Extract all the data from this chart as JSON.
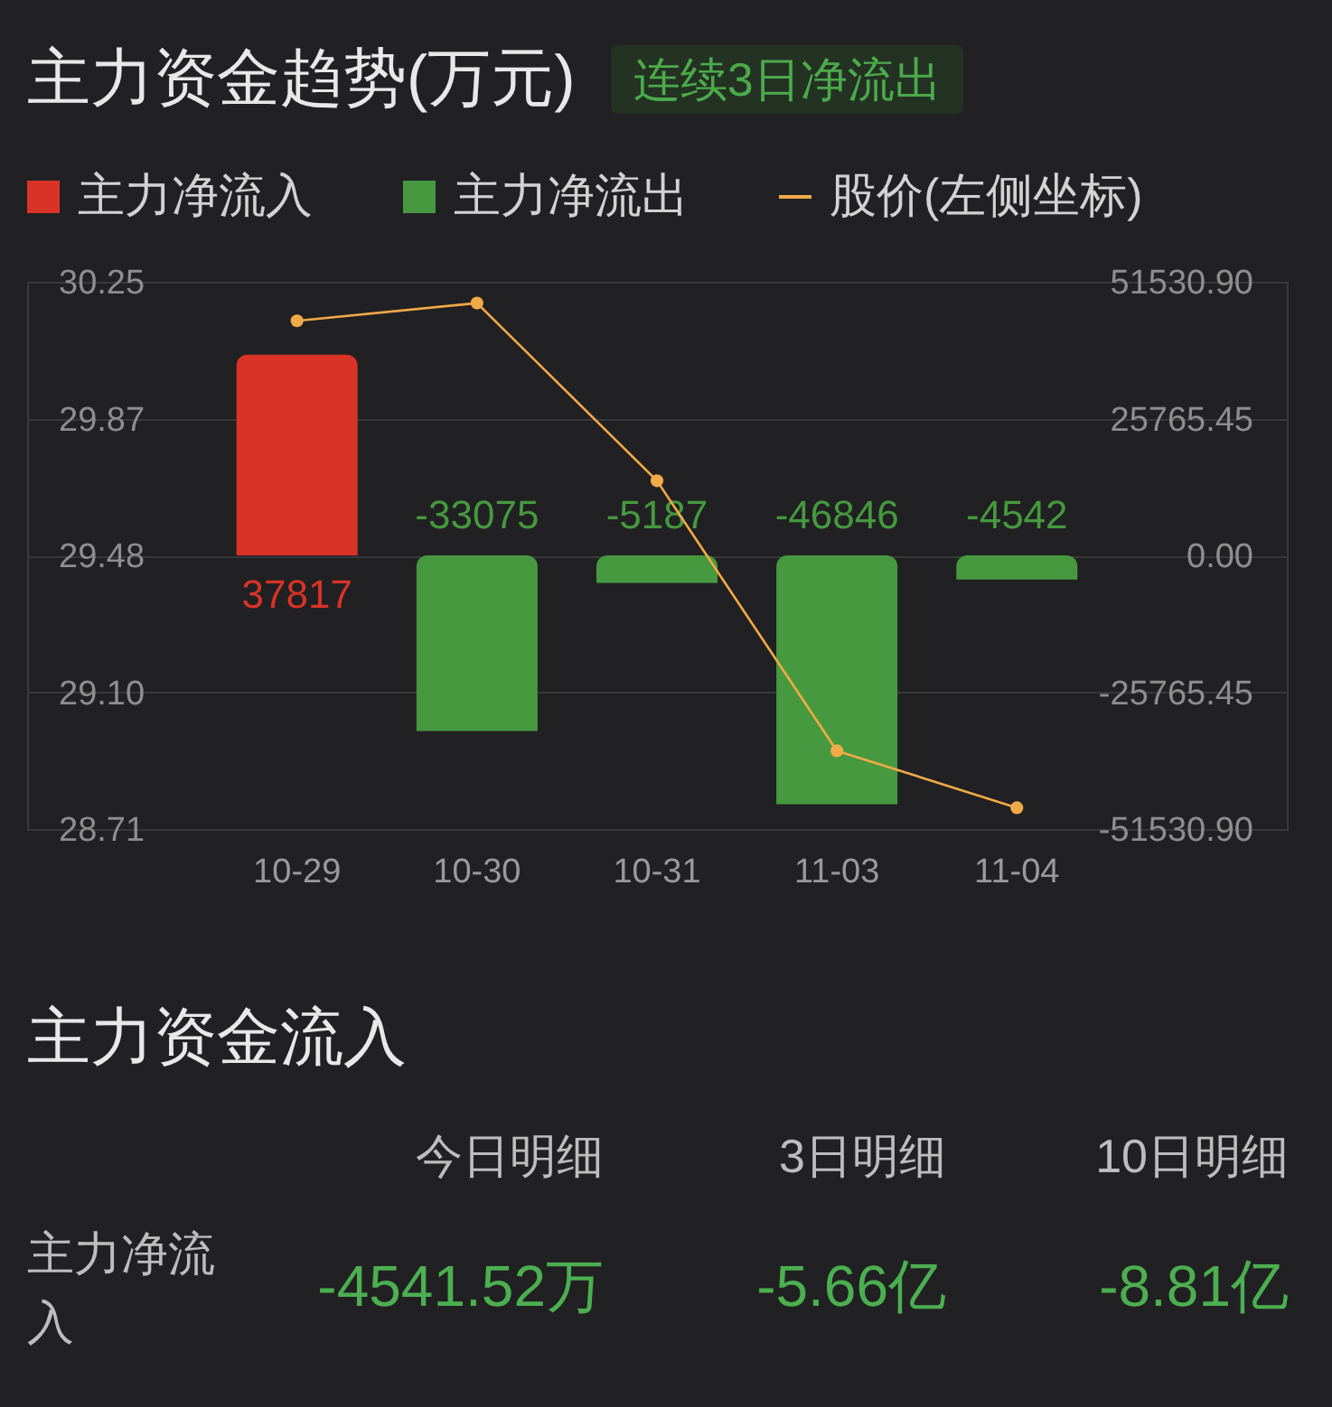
{
  "chart_data": [
    {
      "type": "bar",
      "title": "主力资金趋势(万元)",
      "subtitle": "连续3日净流出",
      "categories": [
        "10-29",
        "10-30",
        "10-31",
        "11-03",
        "11-04"
      ],
      "series": [
        {
          "name": "主力净流入",
          "color": "#d93327",
          "axis": "y2",
          "values": [
            37817,
            null,
            null,
            null,
            null
          ],
          "value_labels": [
            "37817",
            null,
            null,
            null,
            null
          ]
        },
        {
          "name": "主力净流出",
          "color": "#46993f",
          "axis": "y2",
          "values": [
            null,
            -33075,
            -5187,
            -46846,
            -4542
          ],
          "value_labels": [
            null,
            "-33075",
            "-5187",
            "-46846",
            "-4542"
          ]
        },
        {
          "name": "股价(左侧坐标)",
          "type": "line",
          "color": "#f2aa48",
          "values": [
            30.14,
            30.19,
            29.69,
            28.93,
            28.77
          ]
        }
      ],
      "ylim": [
        28.71,
        30.25
      ],
      "yticks": [
        28.71,
        {
          "value": 29.095,
          "label": "29.10"
        },
        29.48,
        {
          "value": 29.865,
          "label": "29.87"
        },
        30.25
      ],
      "y2lim": [
        -51530.9,
        51530.9
      ],
      "y2ticks": [
        {
          "value": -51530.9,
          "label": "-51530.90"
        },
        -25765.45,
        {
          "value": 0,
          "label": "0.00"
        },
        25765.45,
        {
          "value": 51530.9,
          "label": "51530.90"
        }
      ],
      "grid": "y",
      "legend": "top left",
      "marker": "circle"
    },
    {
      "type": "other",
      "title": "主力资金流入",
      "annotations": [
        "今日明细",
        "3日明细",
        "10日明细",
        "主力净流入",
        "-4541.52万",
        "-5.66亿",
        "-8.81亿"
      ]
    }
  ]
}
